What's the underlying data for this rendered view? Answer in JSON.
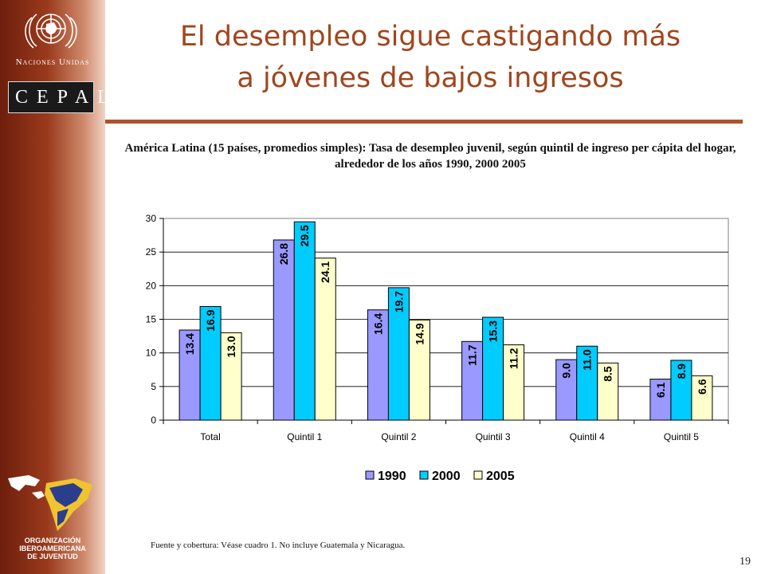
{
  "sidebar": {
    "un_name": "Naciones Unidas",
    "cepal_label": "CEPAL",
    "oij_name_lines": [
      "ORGANIZACIÓN",
      "IBEROAMERICANA",
      "DE JUVENTUD"
    ]
  },
  "slide": {
    "title_lines": [
      "El desempleo sigue castigando más",
      "a jóvenes de bajos ingresos"
    ],
    "source": "Fuente y cobertura: Véase cuadro 1. No incluye Guatemala y Nicaragua.",
    "page_number": "19"
  },
  "colors": {
    "accent": "#a0461e",
    "series": [
      "#9999ff",
      "#00ccff",
      "#ffffcc"
    ]
  },
  "chart_data": {
    "type": "bar",
    "title": "América Latina (15 países, promedios simples): Tasa de desempleo juvenil, según quintil de ingreso per cápita del hogar, alrededor de los años 1990, 2000 2005",
    "xlabel": "",
    "ylabel": "",
    "categories": [
      "Total",
      "Quintil 1",
      "Quintil 2",
      "Quintil 3",
      "Quintil 4",
      "Quintil 5"
    ],
    "series": [
      {
        "name": "1990",
        "values": [
          13.4,
          26.8,
          16.4,
          11.7,
          9.0,
          6.1
        ]
      },
      {
        "name": "2000",
        "values": [
          16.9,
          29.5,
          19.7,
          15.3,
          11.0,
          8.9
        ]
      },
      {
        "name": "2005",
        "values": [
          13.0,
          24.1,
          14.9,
          11.2,
          8.5,
          6.6
        ]
      }
    ],
    "ylim": [
      0,
      30
    ],
    "yticks": [
      0,
      5,
      10,
      15,
      20,
      25,
      30
    ],
    "grid": true,
    "legend_position": "bottom"
  }
}
